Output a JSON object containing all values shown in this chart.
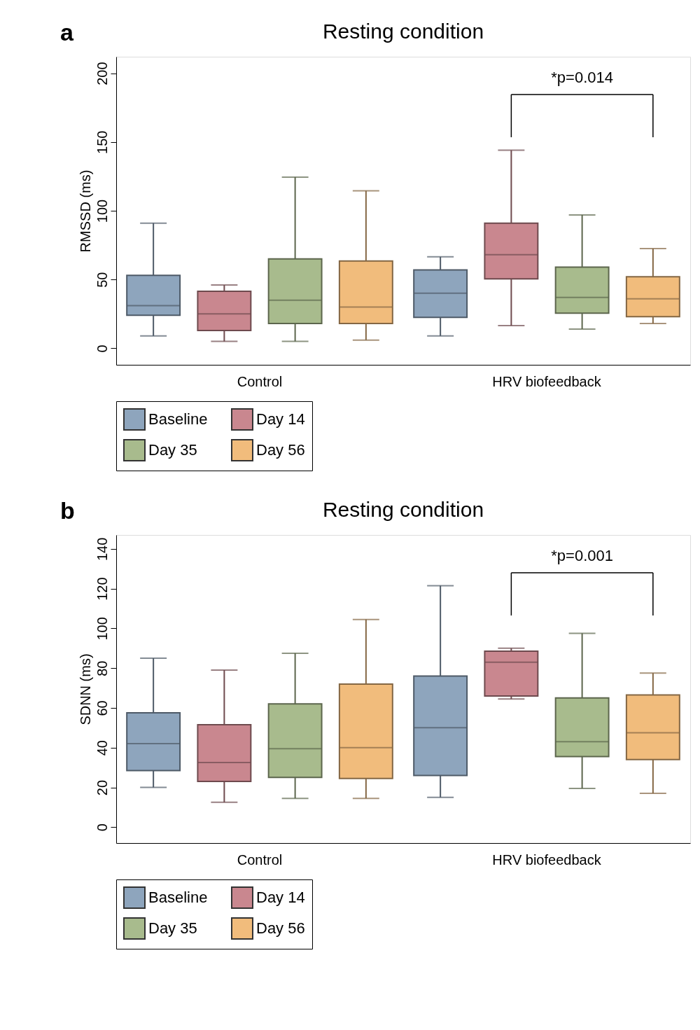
{
  "chart_data": [
    {
      "type": "box",
      "title": "Resting condition",
      "ylabel": "RMSSD (ms)",
      "categories": [
        "Control",
        "HRV biofeedback"
      ],
      "ylim": [
        -12,
        212
      ],
      "yticks": [
        0,
        50,
        100,
        150,
        200
      ],
      "grid": false,
      "legend": "bottom",
      "annotations": [
        "a",
        "*p=0.014"
      ],
      "series": [
        {
          "name": "Baseline",
          "color": "#8ea5bd",
          "boxes": [
            {
              "low": 9,
              "q1": 24,
              "median": 31,
              "q3": 53,
              "high": 91
            },
            {
              "low": 9,
              "q1": 22.5,
              "median": 40,
              "q3": 57,
              "high": 66.5
            }
          ]
        },
        {
          "name": "Day 14",
          "color": "#c9878f",
          "boxes": [
            {
              "low": 5,
              "q1": 13,
              "median": 25,
              "q3": 41.5,
              "high": 46
            },
            {
              "low": 16.5,
              "q1": 50.5,
              "median": 68,
              "q3": 91,
              "high": 144
            }
          ]
        },
        {
          "name": "Day 35",
          "color": "#a8bb8d",
          "boxes": [
            {
              "low": 5,
              "q1": 18,
              "median": 35,
              "q3": 65,
              "high": 124.5
            },
            {
              "low": 14,
              "q1": 25.5,
              "median": 37,
              "q3": 59,
              "high": 97
            }
          ]
        },
        {
          "name": "Day 56",
          "color": "#f1bc7c",
          "boxes": [
            {
              "low": 6,
              "q1": 18,
              "median": 30,
              "q3": 63.5,
              "high": 114.5
            },
            {
              "low": 18,
              "q1": 23,
              "median": 36,
              "q3": 52,
              "high": 72.5
            }
          ]
        }
      ]
    },
    {
      "type": "box",
      "title": "Resting condition",
      "ylabel": "SDNN (ms)",
      "categories": [
        "Control",
        "HRV biofeedback"
      ],
      "ylim": [
        -8,
        147
      ],
      "yticks": [
        0,
        20,
        40,
        60,
        80,
        100,
        120,
        140
      ],
      "grid": false,
      "legend": "bottom",
      "annotations": [
        "b",
        "*p=0.001"
      ],
      "series": [
        {
          "name": "Baseline",
          "color": "#8ea5bd",
          "boxes": [
            {
              "low": 20,
              "q1": 28.5,
              "median": 42,
              "q3": 57.5,
              "high": 85
            },
            {
              "low": 15,
              "q1": 26,
              "median": 50,
              "q3": 76,
              "high": 121.5
            }
          ]
        },
        {
          "name": "Day 14",
          "color": "#c9878f",
          "boxes": [
            {
              "low": 12.5,
              "q1": 23,
              "median": 32.5,
              "q3": 51.5,
              "high": 79
            },
            {
              "low": 64.5,
              "q1": 66,
              "median": 83,
              "q3": 88.5,
              "high": 90
            }
          ]
        },
        {
          "name": "Day 35",
          "color": "#a8bb8d",
          "boxes": [
            {
              "low": 14.5,
              "q1": 25,
              "median": 39.5,
              "q3": 62,
              "high": 87.5
            },
            {
              "low": 19.5,
              "q1": 35.5,
              "median": 43,
              "q3": 65,
              "high": 97.5
            }
          ]
        },
        {
          "name": "Day 56",
          "color": "#f1bc7c",
          "boxes": [
            {
              "low": 14.5,
              "q1": 24.5,
              "median": 40,
              "q3": 72,
              "high": 104.5
            },
            {
              "low": 17,
              "q1": 34,
              "median": 47.5,
              "q3": 66.5,
              "high": 77.5
            }
          ]
        }
      ]
    }
  ]
}
